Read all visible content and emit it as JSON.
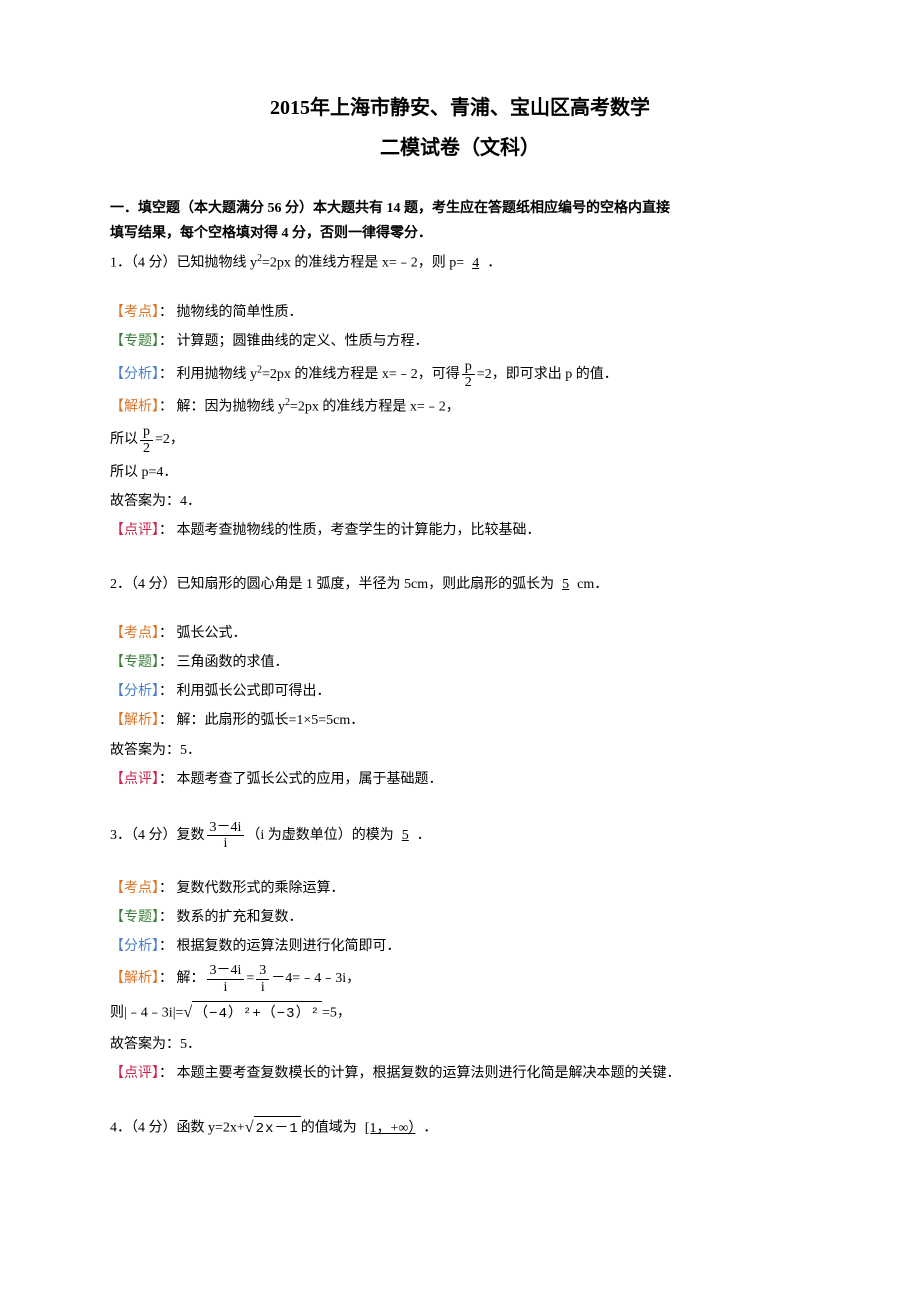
{
  "title": "2015年上海市静安、青浦、宝山区高考数学",
  "subtitle": "二模试卷（文科）",
  "section_header_line1": "一．填空题（本大题满分 56 分）本大题共有 14 题，考生应在答题纸相应编号的空格内直接",
  "section_header_line2": "填写结果，每个空格填对得 4 分，否则一律得零分．",
  "q1": {
    "prefix": "1．（4 分）已知抛物线 y",
    "mid": "=2px 的准线方程是 x=﹣2，则 p=",
    "answer": "4",
    "suffix": "．",
    "kaodian_label": "【考点】",
    "kaodian_text": "： 抛物线的简单性质．",
    "zhuanti_label": "【专题】",
    "zhuanti_text": "： 计算题；圆锥曲线的定义、性质与方程．",
    "fenxi_label": "【分析】",
    "fenxi_text_a": "： 利用抛物线 y",
    "fenxi_text_b": "=2px 的准线方程是 x=﹣2，可得",
    "fenxi_frac_num": "p",
    "fenxi_frac_den": "2",
    "fenxi_text_c": "=2，即可求出 p 的值．",
    "jiexi_label": "【解析】",
    "jiexi_text_a": "： 解：因为抛物线 y",
    "jiexi_text_b": "=2px 的准线方程是 x=﹣2，",
    "so_a": "所以",
    "so_frac_num": "p",
    "so_frac_den": "2",
    "so_b": "=2，",
    "so_p": "所以 p=4．",
    "ans_line": "故答案为：4．",
    "dianping_label": "【点评】",
    "dianping_text": "： 本题考查抛物线的性质，考查学生的计算能力，比较基础．"
  },
  "q2": {
    "text_a": "2．（4 分）已知扇形的圆心角是 1 弧度，半径为 5cm，则此扇形的弧长为",
    "answer": "5",
    "text_b": "cm．",
    "kaodian_label": "【考点】",
    "kaodian_text": "： 弧长公式．",
    "zhuanti_label": "【专题】",
    "zhuanti_text": "： 三角函数的求值．",
    "fenxi_label": "【分析】",
    "fenxi_text": "： 利用弧长公式即可得出．",
    "jiexi_label": "【解析】",
    "jiexi_text": "： 解：此扇形的弧长=1×5=5cm．",
    "ans_line": "故答案为：5．",
    "dianping_label": "【点评】",
    "dianping_text": "： 本题考查了弧长公式的应用，属于基础题．"
  },
  "q3": {
    "text_a": "3．（4 分）复数",
    "frac_num": "3－4i",
    "frac_den": "i",
    "text_b": "（i 为虚数单位）的模为",
    "answer": "5",
    "text_c": "．",
    "kaodian_label": "【考点】",
    "kaodian_text": "： 复数代数形式的乘除运算．",
    "zhuanti_label": "【专题】",
    "zhuanti_text": "： 数系的扩充和复数．",
    "fenxi_label": "【分析】",
    "fenxi_text": "： 根据复数的运算法则进行化简即可．",
    "jiexi_label": "【解析】",
    "jiexi_text_a": "： 解：",
    "jiexi_frac1_num": "3－4i",
    "jiexi_frac1_den": "i",
    "jiexi_eq": "=",
    "jiexi_frac2_num": "3",
    "jiexi_frac2_den": "i",
    "jiexi_text_b": "－4=﹣4﹣3i，",
    "mod_a": "则|﹣4﹣3i|=",
    "mod_sqrt": "（−4）²+（−3）²",
    "mod_b": "=5，",
    "ans_line": "故答案为：5．",
    "dianping_label": "【点评】",
    "dianping_text": "： 本题主要考查复数模长的计算，根据复数的运算法则进行化简是解决本题的关键．"
  },
  "q4": {
    "text_a": "4．（4 分）函数 y=2x+",
    "sqrt": "2x－1",
    "text_b": "的值域为",
    "answer": "[1，+∞）",
    "text_c": "．"
  }
}
